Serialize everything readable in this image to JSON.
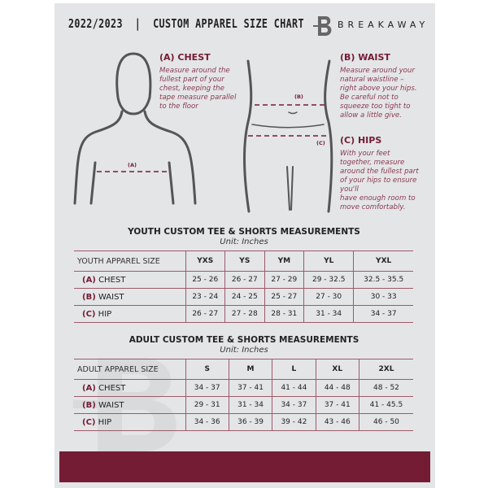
{
  "header": {
    "title": "2022/2023  |  CUSTOM APPAREL SIZE CHART",
    "brand": "BREAKAWAY",
    "logo_letter": "B"
  },
  "guide": {
    "chest": {
      "heading": "(A) CHEST",
      "text": [
        "Measure around the",
        "fullest part of your",
        "chest, keeping the",
        "tape measure parallel",
        "to the floor"
      ],
      "tag": "(A)"
    },
    "waist": {
      "heading": "(B) WAIST",
      "text": [
        "Measure around your",
        "natural waistline –",
        "right above your hips.",
        "Be careful not to",
        "squeeze too tight to",
        "allow a little give."
      ],
      "tag": "(B)"
    },
    "hips": {
      "heading": "(C) HIPS",
      "text": [
        "With your feet",
        "together, measure",
        "around the fullest part",
        "of your hips to ensure",
        "you'll",
        "have enough room to",
        "move comfortably."
      ],
      "tag": "(C)"
    }
  },
  "youth": {
    "title": "YOUTH CUSTOM TEE & SHORTS MEASUREMENTS",
    "unit": "Unit: Inches",
    "header": [
      "YOUTH APPAREL SIZE",
      "YXS",
      "YS",
      "YM",
      "YL",
      "YXL"
    ],
    "rows": [
      {
        "letter": "(A)",
        "name": "CHEST",
        "values": [
          "25 - 26",
          "26 - 27",
          "27 - 29",
          "29 - 32.5",
          "32.5 - 35.5"
        ]
      },
      {
        "letter": "(B)",
        "name": "WAIST",
        "values": [
          "23 - 24",
          "24 - 25",
          "25 - 27",
          "27 - 30",
          "30 - 33"
        ]
      },
      {
        "letter": "(C)",
        "name": "HIP",
        "values": [
          "26 - 27",
          "27 - 28",
          "28 - 31",
          "31 - 34",
          "34 - 37"
        ]
      }
    ]
  },
  "adult": {
    "title": "ADULT CUSTOM TEE & SHORTS MEASUREMENTS",
    "unit": "Unit: Inches",
    "header": [
      "ADULT APPAREL SIZE",
      "S",
      "M",
      "L",
      "XL",
      "2XL"
    ],
    "rows": [
      {
        "letter": "(A)",
        "name": "CHEST",
        "values": [
          "34 - 37",
          "37 - 41",
          "41 - 44",
          "44 - 48",
          "48 - 52"
        ]
      },
      {
        "letter": "(B)",
        "name": "WAIST",
        "values": [
          "29 - 31",
          "31 - 34",
          "34 - 37",
          "37 - 41",
          "41 - 45.5"
        ]
      },
      {
        "letter": "(C)",
        "name": "HIP",
        "values": [
          "34 - 36",
          "36 - 39",
          "39 - 42",
          "43 - 46",
          "46 - 50"
        ]
      }
    ]
  },
  "colors": {
    "accent": "#741c33",
    "background": "#e4e5e7"
  }
}
